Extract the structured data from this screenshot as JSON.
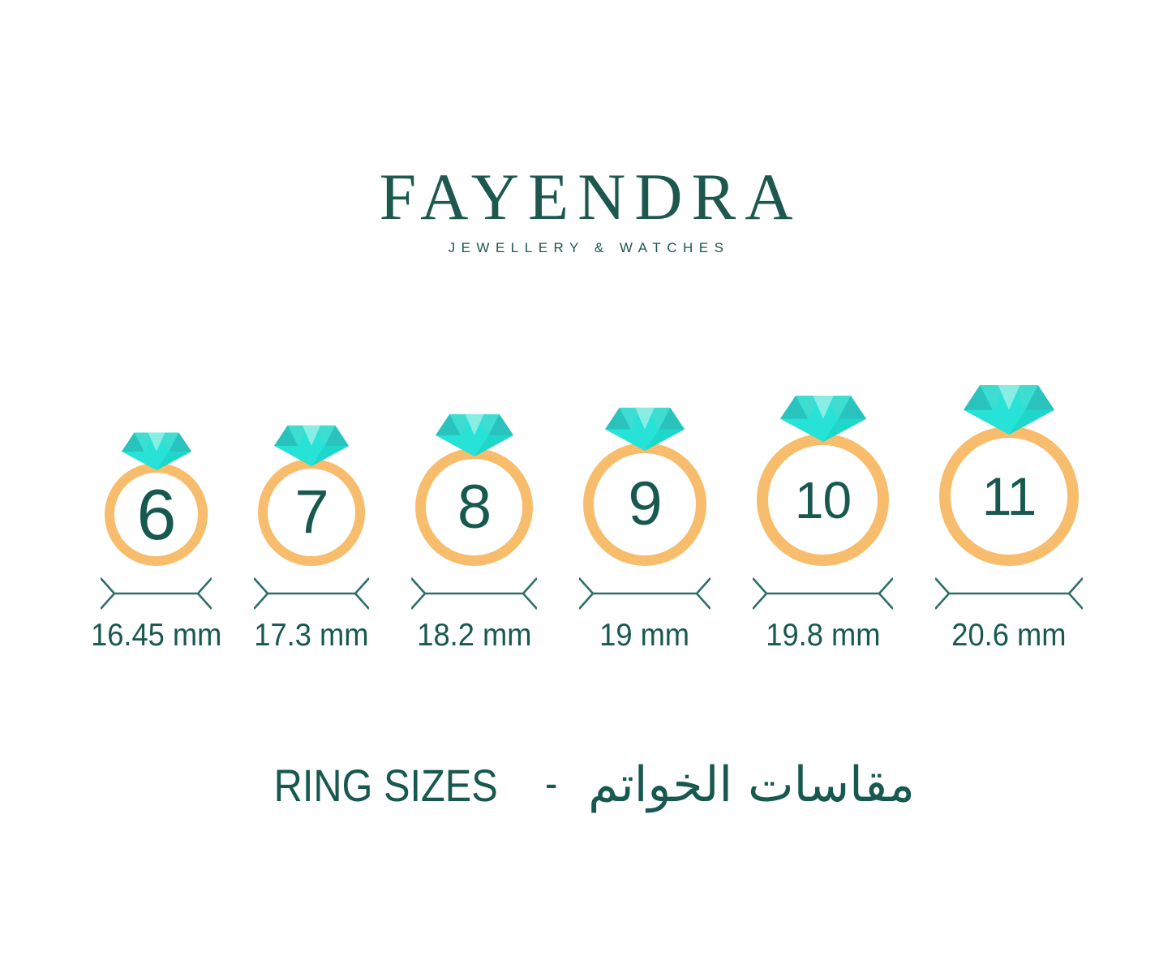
{
  "brand": {
    "name": "FAYENDRA",
    "tagline": "JEWELLERY & WATCHES"
  },
  "rings": [
    {
      "size": "6",
      "diameter_label": "16.45 mm"
    },
    {
      "size": "7",
      "diameter_label": "17.3 mm"
    },
    {
      "size": "8",
      "diameter_label": "18.2 mm"
    },
    {
      "size": "9",
      "diameter_label": "19 mm"
    },
    {
      "size": "10",
      "diameter_label": "19.8 mm"
    },
    {
      "size": "11",
      "diameter_label": "20.6 mm"
    }
  ],
  "footer": {
    "title_en": "RING SIZES",
    "separator": "-",
    "title_ar": "مقاسات الخواتم"
  },
  "icons": {
    "gem": "diamond-icon",
    "arrow": "diameter-measure-arrow-icon"
  },
  "colors": {
    "brand-teal": "#1D584F",
    "text-teal": "#17584F",
    "band-orange": "#F7BD6D",
    "arrow-teal": "#2E6F68",
    "gem-bright": "#27E2D6",
    "gem-medium": "#3FDCD2",
    "gem-pale": "#8AEDE3",
    "gem-dark": "#29C2BD",
    "gem-shade": "#1FD6CB"
  },
  "chart_data": {
    "type": "table",
    "title": "RING SIZES",
    "columns": [
      "ring_size",
      "inner_diameter"
    ],
    "rows": [
      [
        "6",
        "16.45 mm"
      ],
      [
        "7",
        "17.3 mm"
      ],
      [
        "8",
        "18.2 mm"
      ],
      [
        "9",
        "19 mm"
      ],
      [
        "10",
        "19.8 mm"
      ],
      [
        "11",
        "20.6 mm"
      ]
    ]
  }
}
